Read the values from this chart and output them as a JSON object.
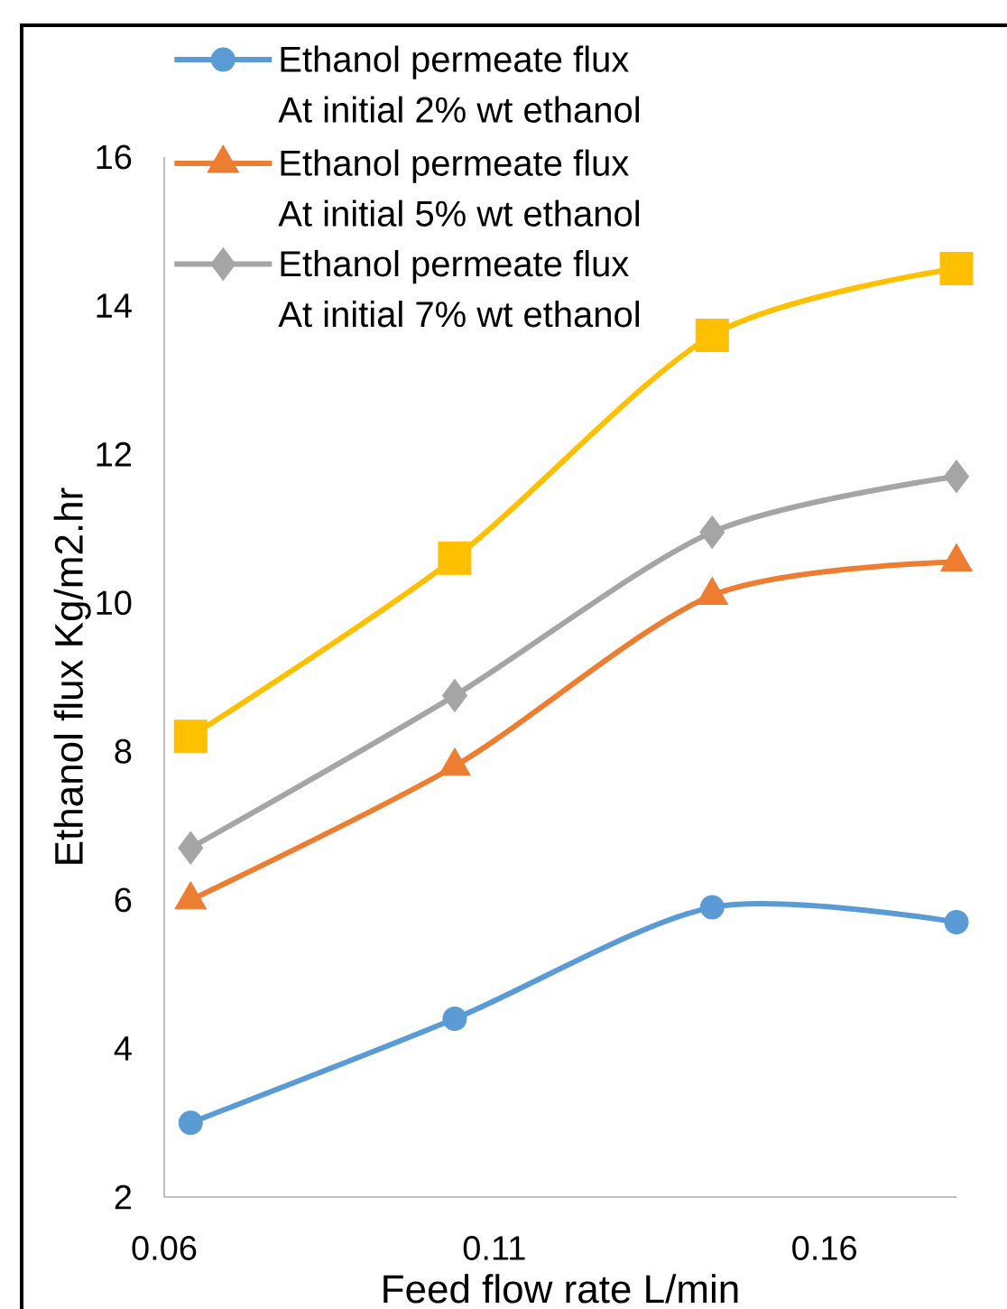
{
  "chart_data": {
    "type": "line",
    "xlabel": "Feed flow rate L/min",
    "ylabel": "Ethanol flux Kg/m2.hr",
    "x": [
      0.064,
      0.104,
      0.143,
      0.18
    ],
    "xlim": [
      0.06,
      0.18
    ],
    "xticks": [
      0.06,
      0.11,
      0.16
    ],
    "ylim": [
      2,
      16
    ],
    "yticks": [
      2,
      4,
      6,
      8,
      10,
      12,
      14,
      16
    ],
    "legend": "top left",
    "line_style": "solid",
    "series": [
      {
        "name": "Ethanol permeate flux At initial 2% wt ethanol",
        "color": "#5b9bd5",
        "marker": "circle",
        "values": [
          3.0,
          4.4,
          5.9,
          5.7
        ]
      },
      {
        "name": "Ethanol permeate flux At initial 5% wt ethanol",
        "color": "#ed7d31",
        "marker": "triangle",
        "values": [
          6.0,
          7.8,
          10.1,
          10.55
        ]
      },
      {
        "name": "Ethanol permeate flux At initial 7% wt ethanol",
        "color": "#a5a5a5",
        "marker": "diamond",
        "values": [
          6.7,
          8.75,
          10.95,
          11.7
        ]
      },
      {
        "color": "#ffc000",
        "marker": "square",
        "values": [
          8.2,
          10.6,
          13.6,
          14.5
        ]
      }
    ]
  }
}
